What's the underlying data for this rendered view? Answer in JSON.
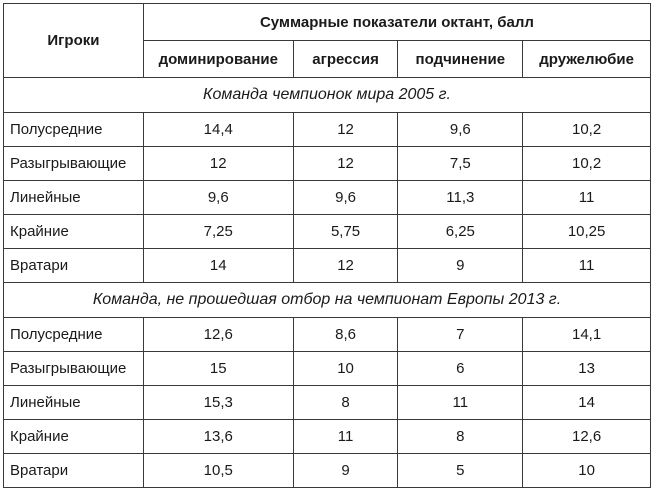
{
  "header": {
    "players": "Игроки",
    "group": "Суммарные показатели октант, балл",
    "columns": [
      "доминирование",
      "агрессия",
      "подчинение",
      "дружелюбие"
    ]
  },
  "sections": [
    {
      "title": "Команда чемпионок мира 2005 г.",
      "rows": [
        {
          "label": "Полусредние",
          "values": [
            "14,4",
            "12",
            "9,6",
            "10,2"
          ]
        },
        {
          "label": "Разыгрывающие",
          "values": [
            "12",
            "12",
            "7,5",
            "10,2"
          ]
        },
        {
          "label": "Линейные",
          "values": [
            "9,6",
            "9,6",
            "11,3",
            "11"
          ]
        },
        {
          "label": "Крайние",
          "values": [
            "7,25",
            "5,75",
            "6,25",
            "10,25"
          ]
        },
        {
          "label": "Вратари",
          "values": [
            "14",
            "12",
            "9",
            "11"
          ]
        }
      ]
    },
    {
      "title": "Команда, не прошедшая отбор на чемпионат Европы 2013 г.",
      "rows": [
        {
          "label": "Полусредние",
          "values": [
            "12,6",
            "8,6",
            "7",
            "14,1"
          ]
        },
        {
          "label": "Разыгрывающие",
          "values": [
            "15",
            "10",
            "6",
            "13"
          ]
        },
        {
          "label": "Линейные",
          "values": [
            "15,3",
            "8",
            "11",
            "14"
          ]
        },
        {
          "label": "Крайние",
          "values": [
            "13,6",
            "11",
            "8",
            "12,6"
          ]
        },
        {
          "label": "Вратари",
          "values": [
            "10,5",
            "9",
            "5",
            "10"
          ]
        }
      ]
    }
  ]
}
